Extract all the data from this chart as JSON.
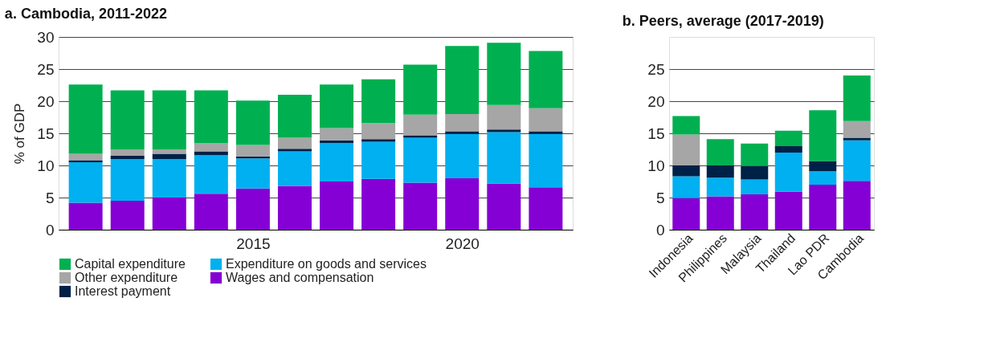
{
  "chart_data": [
    {
      "type": "bar",
      "title": "a. Cambodia, 2011-2022",
      "ylabel": "% of GDP",
      "stacked": true,
      "x": [
        2011,
        2012,
        2013,
        2014,
        2015,
        2016,
        2017,
        2018,
        2019,
        2020,
        2021,
        2022
      ],
      "xlim": [
        2010.45,
        2022.55
      ],
      "xticks": [
        2015,
        2020
      ],
      "ylim": [
        0,
        30
      ],
      "yticks": [
        0,
        5,
        10,
        15,
        20,
        25,
        30
      ],
      "grid": "y",
      "legend": "bottom",
      "series": [
        {
          "name": "Wages and compensation",
          "color": "#8500d4",
          "values": [
            4.2,
            4.5,
            5.0,
            5.6,
            6.4,
            6.8,
            7.5,
            7.9,
            7.3,
            8.0,
            7.2,
            6.6
          ]
        },
        {
          "name": "Expenditure on goods and services",
          "color": "#00b0f0",
          "values": [
            6.3,
            6.5,
            6.0,
            6.0,
            4.7,
            5.4,
            6.0,
            5.8,
            7.0,
            6.9,
            8.0,
            8.3
          ]
        },
        {
          "name": "Interest payment",
          "color": "#002147",
          "values": [
            0.3,
            0.5,
            0.8,
            0.6,
            0.3,
            0.4,
            0.4,
            0.4,
            0.4,
            0.4,
            0.4,
            0.4
          ]
        },
        {
          "name": "Other expenditure",
          "color": "#a6a6a6",
          "values": [
            1.0,
            1.0,
            0.7,
            1.3,
            1.8,
            1.7,
            1.9,
            2.5,
            3.2,
            2.7,
            3.8,
            3.6
          ]
        },
        {
          "name": "Capital expenditure",
          "color": "#00b050",
          "values": [
            10.8,
            9.2,
            9.2,
            8.2,
            6.9,
            6.7,
            6.8,
            6.8,
            7.8,
            10.6,
            9.7,
            8.9
          ]
        }
      ]
    },
    {
      "type": "bar",
      "title": "b. Peers, average (2017-2019)",
      "stacked": true,
      "categories": [
        "Indonesia",
        "Philippines",
        "Malaysia",
        "Thailand",
        "Lao PDR",
        "Cambodia"
      ],
      "ylim": [
        0,
        30
      ],
      "yticks": [
        0,
        5,
        10,
        15,
        20,
        25
      ],
      "grid": "y",
      "series": [
        {
          "color": "#8500d4",
          "values": [
            4.9,
            5.2,
            5.5,
            5.9,
            7.0,
            7.6
          ]
        },
        {
          "color": "#00b0f0",
          "values": [
            3.4,
            2.9,
            2.3,
            6.1,
            2.1,
            6.3
          ]
        },
        {
          "color": "#002147",
          "values": [
            1.7,
            1.9,
            2.1,
            1.0,
            1.6,
            0.4
          ]
        },
        {
          "color": "#a6a6a6",
          "values": [
            4.8,
            0,
            0,
            0,
            0,
            2.6
          ]
        },
        {
          "color": "#00b050",
          "values": [
            2.9,
            4.1,
            3.5,
            2.4,
            7.9,
            7.1
          ]
        }
      ]
    }
  ]
}
